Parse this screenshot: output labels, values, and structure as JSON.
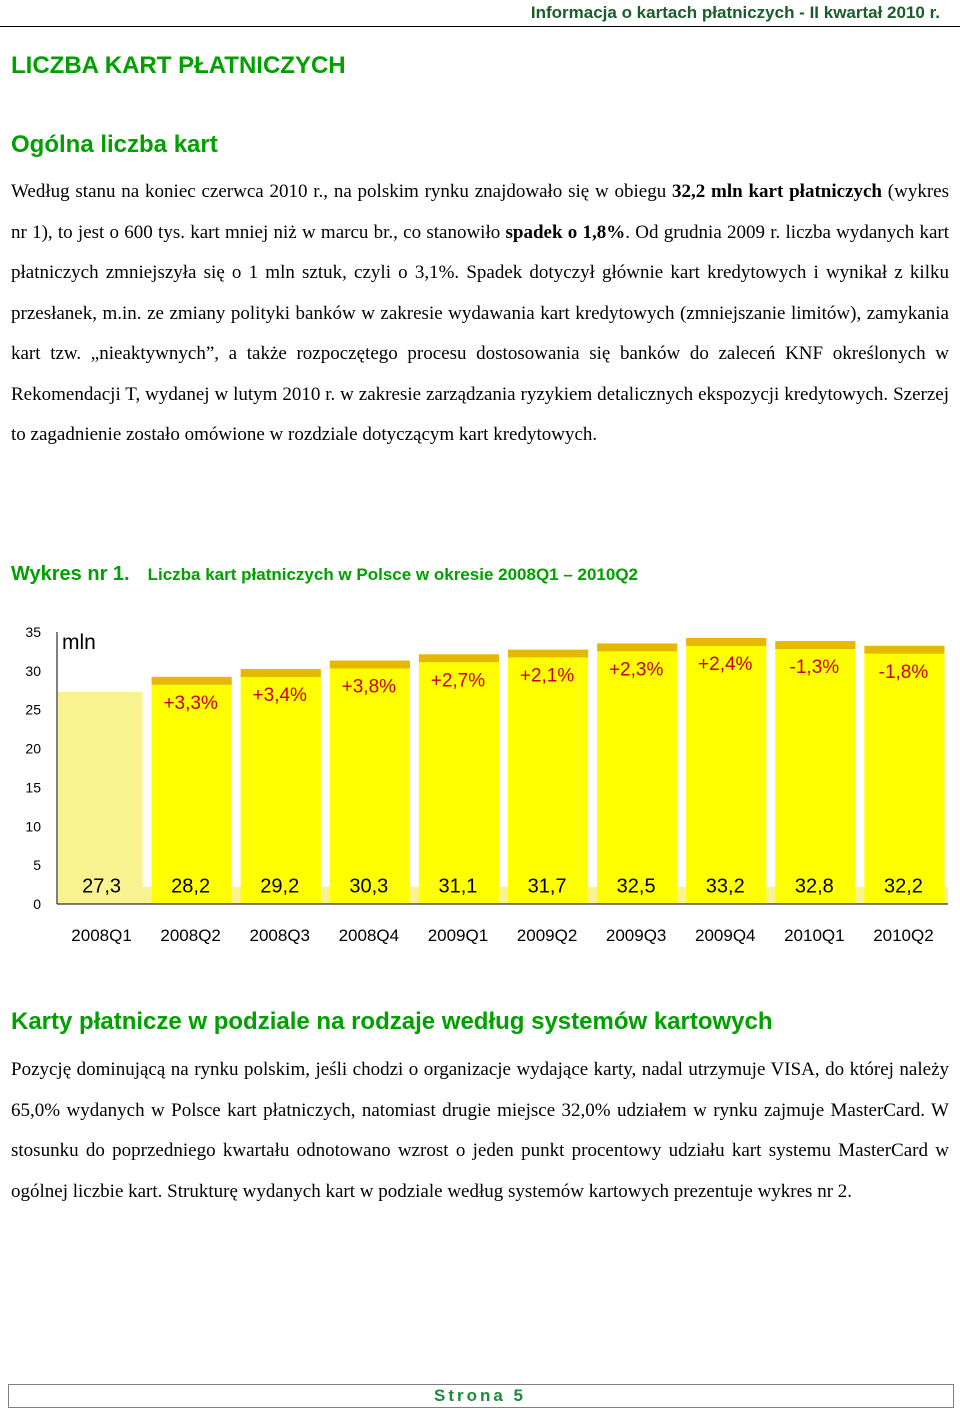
{
  "header": {
    "title": "Informacja o kartach płatniczych - II kwartał 2010 r."
  },
  "section": {
    "title": "LICZBA KART PŁATNICZYCH"
  },
  "subsection1": {
    "title": "Ogólna liczba kart"
  },
  "paragraph1": {
    "t1": "Według stanu na koniec czerwca 2010 r., na polskim rynku znajdowało się w obiegu ",
    "b1": "32,2 mln kart płatniczych",
    "t2": " (wykres nr 1), to jest o 600 tys. kart mniej niż w marcu br., co stanowiło ",
    "b2": "spadek o 1,8%",
    "t3": ". Od grudnia 2009 r. liczba wydanych kart płatniczych zmniejszyła się o 1 mln sztuk, czyli o 3,1%. Spadek dotyczył głównie kart kredytowych i wynikał z kilku przesłanek, m.in. ze zmiany polityki banków w zakresie wydawania kart kredytowych (zmniejszanie limitów), zamykania kart tzw. „nieaktywnych”, a także rozpoczętego procesu dostosowania się banków do zaleceń KNF określonych w Rekomendacji T, wydanej w lutym 2010 r. w zakresie zarządzania ryzykiem detalicznych ekspozycji kredytowych. Szerzej to zagadnienie zostało omówione w rozdziale dotyczącym kart kredytowych."
  },
  "chart_caption": {
    "number": "Wykres nr 1.",
    "title": "Liczba kart płatniczych w Polsce w okresie 2008Q1 – 2010Q2"
  },
  "chart_data": {
    "type": "bar",
    "title": "Liczba kart płatniczych w Polsce w okresie 2008Q1 – 2010Q2",
    "unit_label": "mln",
    "categories": [
      "2008Q1",
      "2008Q2",
      "2008Q3",
      "2008Q4",
      "2009Q1",
      "2009Q2",
      "2009Q3",
      "2009Q4",
      "2010Q1",
      "2010Q2"
    ],
    "values": [
      27.3,
      28.2,
      29.2,
      30.3,
      31.1,
      31.7,
      32.5,
      33.2,
      32.8,
      32.2
    ],
    "value_labels": [
      "27,3",
      "28,2",
      "29,2",
      "30,3",
      "31,1",
      "31,7",
      "32,5",
      "33,2",
      "32,8",
      "32,2"
    ],
    "change_labels": [
      "",
      "+3,3%",
      "+3,4%",
      "+3,8%",
      "+2,7%",
      "+2,1%",
      "+2,3%",
      "+2,4%",
      "-1,3%",
      "-1,8%"
    ],
    "yticks": [
      0,
      5,
      10,
      15,
      20,
      25,
      30,
      35
    ],
    "ylim": [
      0,
      35
    ],
    "colors": {
      "bar": "#ffff00",
      "bar_top": "#e6b800",
      "base": "#f8f390"
    }
  },
  "subsection2": {
    "title": "Karty płatnicze w podziale na rodzaje według systemów kartowych"
  },
  "paragraph2": {
    "text": "Pozycję dominującą na rynku polskim, jeśli chodzi o organizacje wydające karty, nadal utrzymuje VISA, do której należy 65,0% wydanych w Polsce kart płatniczych, natomiast drugie miejsce 32,0% udziałem w rynku zajmuje MasterCard. W stosunku do poprzedniego kwartału odnotowano wzrost o jeden punkt procentowy udziału kart systemu MasterCard w ogólnej liczbie kart. Strukturę wydanych kart w podziale według systemów kartowych prezentuje wykres nr 2."
  },
  "footer": {
    "page_label": "Strona 5"
  }
}
